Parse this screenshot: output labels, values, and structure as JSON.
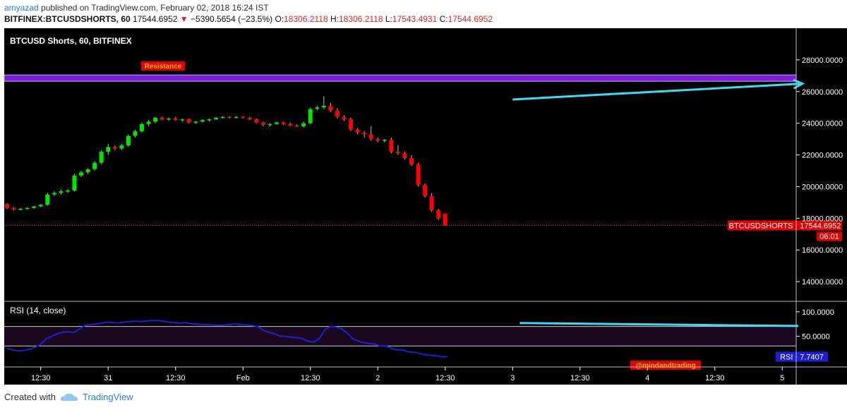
{
  "header": {
    "author": "amyazad",
    "published_text": "published on TradingView.com, February 02, 2018 16:24 IST",
    "symbol": "BITFINEX:BTCUSDSHORTS, 60",
    "last": "17544.6952",
    "change": "−5390.5654 (−23.5%)",
    "open_label": "O:",
    "open": "18306.2118",
    "high_label": "H:",
    "high": "18306.2118",
    "low_label": "L:",
    "low": "17543.4931",
    "close_label": "C:",
    "close": "17544.6952"
  },
  "footer": {
    "created_with": "Created with",
    "brand": "TradingView"
  },
  "colors": {
    "background": "#000000",
    "up": "#00e400",
    "down": "#ff0000",
    "resistance_band": "#7a1fd6",
    "arrow": "#3fd9f0",
    "rsi_line": "#1e1ed4",
    "badge": "#e00000",
    "label_gold": "#e8b400"
  },
  "chart_data": [
    {
      "type": "candlestick",
      "title": "BTCUSD Shorts, 60, BITFINEX",
      "ylim": [
        12800,
        30000
      ],
      "y_ticks": [
        "28000.0000",
        "26000.0000",
        "24000.0000",
        "22000.0000",
        "20000.0000",
        "18000.0000",
        "16000.0000",
        "14000.0000"
      ],
      "y_tick_values": [
        28000,
        26000,
        24000,
        22000,
        20000,
        18000,
        16000,
        14000
      ],
      "x_ticks": [
        "12:30",
        "31",
        "12:30",
        "Feb",
        "12:30",
        "2",
        "12:30",
        "3",
        "12:30",
        "4",
        "12:30",
        "5"
      ],
      "x_tick_bars": [
        5,
        15,
        25,
        35,
        45,
        55,
        65,
        75,
        85,
        95,
        105,
        115
      ],
      "candles": [
        [
          18900,
          18950,
          18600,
          18650
        ],
        [
          18650,
          18700,
          18500,
          18550
        ],
        [
          18550,
          18650,
          18500,
          18600
        ],
        [
          18600,
          18700,
          18550,
          18650
        ],
        [
          18650,
          18800,
          18600,
          18750
        ],
        [
          18750,
          18900,
          18700,
          18850
        ],
        [
          18850,
          19600,
          18800,
          19500
        ],
        [
          19500,
          19700,
          19400,
          19600
        ],
        [
          19600,
          19800,
          19500,
          19700
        ],
        [
          19700,
          19850,
          19600,
          19750
        ],
        [
          19750,
          20800,
          19700,
          20700
        ],
        [
          20700,
          21000,
          20600,
          20900
        ],
        [
          20900,
          21150,
          20800,
          21100
        ],
        [
          21100,
          21600,
          21000,
          21500
        ],
        [
          21500,
          22300,
          21400,
          22200
        ],
        [
          22200,
          22700,
          22000,
          22500
        ],
        [
          22500,
          22600,
          22300,
          22400
        ],
        [
          22400,
          22700,
          22300,
          22600
        ],
        [
          22600,
          23300,
          22500,
          23200
        ],
        [
          23200,
          23600,
          23100,
          23500
        ],
        [
          23500,
          24050,
          23400,
          23950
        ],
        [
          23950,
          24200,
          23800,
          24100
        ],
        [
          24100,
          24400,
          24000,
          24350
        ],
        [
          24350,
          24400,
          24200,
          24250
        ],
        [
          24250,
          24350,
          24150,
          24300
        ],
        [
          24300,
          24400,
          24150,
          24200
        ],
        [
          24200,
          24300,
          24100,
          24250
        ],
        [
          24250,
          24300,
          24000,
          24050
        ],
        [
          24050,
          24150,
          23950,
          24100
        ],
        [
          24100,
          24250,
          24050,
          24200
        ],
        [
          24200,
          24300,
          24100,
          24250
        ],
        [
          24250,
          24400,
          24200,
          24350
        ],
        [
          24350,
          24450,
          24300,
          24400
        ],
        [
          24400,
          24450,
          24300,
          24350
        ],
        [
          24350,
          24450,
          24300,
          24400
        ],
        [
          24400,
          24450,
          24300,
          24350
        ],
        [
          24350,
          24400,
          24200,
          24250
        ],
        [
          24250,
          24300,
          24000,
          24050
        ],
        [
          24050,
          24100,
          23800,
          23900
        ],
        [
          23900,
          24000,
          23800,
          23950
        ],
        [
          23950,
          24100,
          23900,
          24050
        ],
        [
          24050,
          24100,
          23900,
          23950
        ],
        [
          23950,
          24050,
          23800,
          23850
        ],
        [
          23850,
          23950,
          23750,
          23800
        ],
        [
          23800,
          24100,
          23750,
          24000
        ],
        [
          24000,
          25000,
          23950,
          24900
        ],
        [
          24900,
          25100,
          24800,
          25000
        ],
        [
          25000,
          25700,
          24900,
          25100
        ],
        [
          25100,
          25300,
          24700,
          24800
        ],
        [
          24800,
          24950,
          24300,
          24400
        ],
        [
          24400,
          24500,
          24150,
          24250
        ],
        [
          24250,
          24350,
          23500,
          23600
        ],
        [
          23600,
          23700,
          23300,
          23400
        ],
        [
          23400,
          23500,
          23100,
          23300
        ],
        [
          23300,
          23800,
          22900,
          23000
        ],
        [
          23000,
          23100,
          22800,
          22900
        ],
        [
          22900,
          23000,
          22800,
          22950
        ],
        [
          22950,
          23100,
          22100,
          22200
        ],
        [
          22200,
          22600,
          22000,
          22100
        ],
        [
          22100,
          22200,
          21700,
          21800
        ],
        [
          21800,
          22000,
          21300,
          21400
        ],
        [
          21400,
          21500,
          20000,
          20100
        ],
        [
          20100,
          20200,
          19300,
          19400
        ],
        [
          19400,
          19600,
          18400,
          18500
        ],
        [
          18500,
          18600,
          17900,
          18000
        ],
        [
          18300,
          18300,
          17543,
          17545
        ]
      ],
      "last_label": "BTCUSDSHORTS",
      "last_value": "17544.6952",
      "countdown": "06:01",
      "annotations": {
        "resistance_label": "Resistance",
        "resistance_low": 26650,
        "resistance_high": 27050,
        "arrow_from": [
          75,
          25500
        ],
        "arrow_to": [
          118,
          26500
        ]
      }
    },
    {
      "type": "line",
      "title": "RSI (14, close)",
      "ylim": [
        -10,
        120
      ],
      "y_ticks": [
        "100.0000",
        "50.0000"
      ],
      "y_tick_values": [
        100,
        50
      ],
      "band": [
        30,
        70
      ],
      "values": [
        25,
        22,
        20,
        21,
        23,
        27,
        33,
        45,
        50,
        55,
        58,
        59,
        58,
        65,
        72,
        74,
        75,
        77,
        79,
        78,
        77,
        79,
        80,
        81,
        80,
        81,
        82,
        82,
        81,
        79,
        78,
        77,
        78,
        76,
        75,
        74,
        74,
        73,
        72,
        73,
        74,
        75,
        74,
        73,
        72,
        70,
        62,
        58,
        55,
        50,
        50,
        48,
        47,
        45,
        40,
        38,
        45,
        63,
        70,
        69,
        65,
        57,
        45,
        40,
        37,
        35,
        34,
        30,
        30,
        25,
        22,
        22,
        18,
        17,
        15,
        12,
        11,
        10,
        8,
        8
      ],
      "last_label": "RSI",
      "last_value": "7.7407",
      "trendline": {
        "from": [
          92,
          77
        ],
        "to": [
          142,
          71
        ]
      },
      "watermark": "@mindandtrading"
    }
  ]
}
